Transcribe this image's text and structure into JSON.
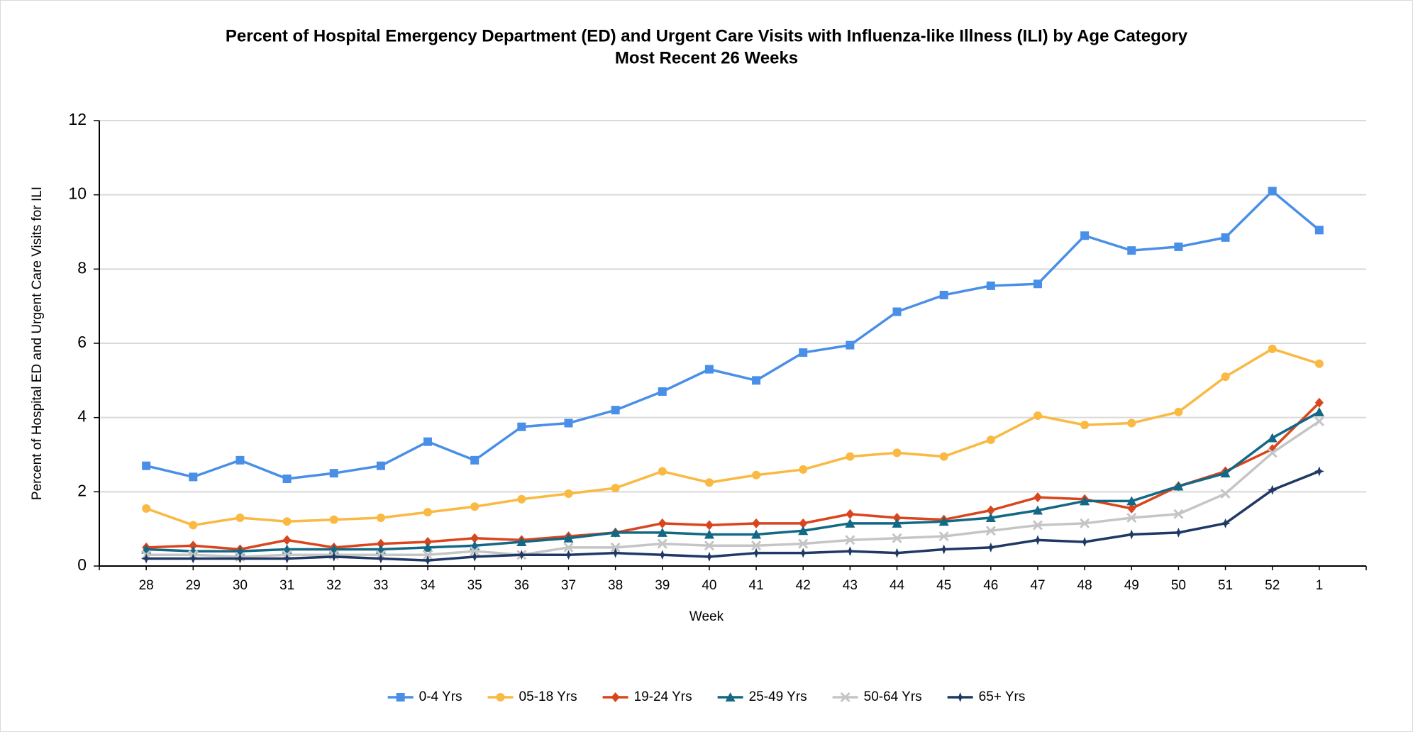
{
  "chart_data": {
    "type": "line",
    "title": "Percent of Hospital Emergency Department (ED) and Urgent Care Visits with Influenza-like Illness (ILI) by Age Category",
    "subtitle": "Most Recent 26 Weeks",
    "xlabel": "Week",
    "ylabel": "Percent of Hospital ED and Urgent Care Visits for ILI",
    "categories": [
      "28",
      "29",
      "30",
      "31",
      "32",
      "33",
      "34",
      "35",
      "36",
      "37",
      "38",
      "39",
      "40",
      "41",
      "42",
      "43",
      "44",
      "45",
      "46",
      "47",
      "48",
      "49",
      "50",
      "51",
      "52",
      "1"
    ],
    "ylim": [
      0,
      12
    ],
    "yticks": [
      0,
      2,
      4,
      6,
      8,
      10,
      12
    ],
    "grid": true,
    "legend": "bottom",
    "series": [
      {
        "name": "0-4 Yrs",
        "color": "#4a8fe7",
        "marker": "square",
        "values": [
          2.7,
          2.4,
          2.85,
          2.35,
          2.5,
          2.7,
          3.35,
          2.85,
          3.75,
          3.85,
          4.2,
          4.7,
          5.3,
          5.0,
          5.75,
          5.95,
          6.85,
          7.3,
          7.55,
          7.6,
          8.9,
          8.5,
          8.6,
          8.85,
          10.1,
          9.05
        ]
      },
      {
        "name": "05-18 Yrs",
        "color": "#f9b942",
        "marker": "circle",
        "values": [
          1.55,
          1.1,
          1.3,
          1.2,
          1.25,
          1.3,
          1.45,
          1.6,
          1.8,
          1.95,
          2.1,
          2.55,
          2.25,
          2.45,
          2.6,
          2.95,
          3.05,
          2.95,
          3.4,
          4.05,
          3.8,
          3.85,
          4.15,
          5.1,
          5.85,
          5.45
        ]
      },
      {
        "name": "19-24 Yrs",
        "color": "#d9451c",
        "marker": "diamond",
        "values": [
          0.5,
          0.55,
          0.45,
          0.7,
          0.5,
          0.6,
          0.65,
          0.75,
          0.7,
          0.8,
          0.9,
          1.15,
          1.1,
          1.15,
          1.15,
          1.4,
          1.3,
          1.25,
          1.5,
          1.85,
          1.8,
          1.55,
          2.15,
          2.55,
          3.15,
          4.4
        ]
      },
      {
        "name": "25-49 Yrs",
        "color": "#136886",
        "marker": "triangle",
        "values": [
          0.45,
          0.4,
          0.4,
          0.45,
          0.45,
          0.45,
          0.5,
          0.55,
          0.65,
          0.75,
          0.9,
          0.9,
          0.85,
          0.85,
          0.95,
          1.15,
          1.15,
          1.2,
          1.3,
          1.5,
          1.75,
          1.75,
          2.15,
          2.5,
          3.45,
          4.15
        ]
      },
      {
        "name": "50-64 Yrs",
        "color": "#c5c5c5",
        "marker": "x",
        "values": [
          0.3,
          0.3,
          0.25,
          0.3,
          0.3,
          0.3,
          0.3,
          0.4,
          0.3,
          0.5,
          0.5,
          0.6,
          0.55,
          0.55,
          0.6,
          0.7,
          0.75,
          0.8,
          0.95,
          1.1,
          1.15,
          1.3,
          1.4,
          1.95,
          3.05,
          3.9
        ]
      },
      {
        "name": "65+ Yrs",
        "color": "#1f3864",
        "marker": "star",
        "values": [
          0.2,
          0.2,
          0.2,
          0.2,
          0.25,
          0.2,
          0.15,
          0.25,
          0.3,
          0.3,
          0.35,
          0.3,
          0.25,
          0.35,
          0.35,
          0.4,
          0.35,
          0.45,
          0.5,
          0.7,
          0.65,
          0.85,
          0.9,
          1.15,
          2.05,
          2.55
        ]
      }
    ]
  }
}
